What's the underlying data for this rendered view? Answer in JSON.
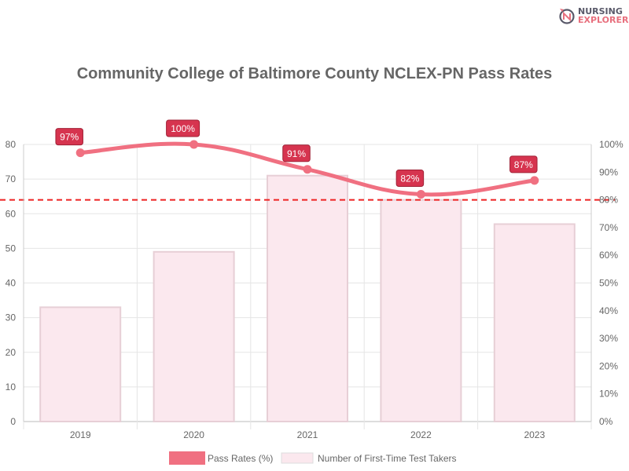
{
  "logo": {
    "line1": "NURSING",
    "line2": "EXPLORER"
  },
  "chart_data": {
    "type": "bar+line",
    "title": "Community College of Baltimore County NCLEX-PN Pass Rates",
    "categories": [
      "2019",
      "2020",
      "2021",
      "2022",
      "2023"
    ],
    "series": [
      {
        "name": "Pass Rates (%)",
        "type": "line",
        "axis": "right",
        "values": [
          97,
          100,
          91,
          82,
          87
        ],
        "labels": [
          "97%",
          "100%",
          "91%",
          "82%",
          "87%"
        ],
        "color": "#f07081"
      },
      {
        "name": "Number of First-Time Test Takers",
        "type": "bar",
        "axis": "left",
        "values": [
          33,
          49,
          71,
          64,
          57
        ],
        "color": "#fbe8ee",
        "border": "#e7cfd6"
      }
    ],
    "left_axis": {
      "ylim": [
        0,
        80
      ],
      "ticks": [
        "0",
        "10",
        "20",
        "30",
        "40",
        "50",
        "60",
        "70",
        "80"
      ]
    },
    "right_axis": {
      "ylim": [
        0,
        100
      ],
      "ticks": [
        "0%",
        "10%",
        "20%",
        "30%",
        "40%",
        "50%",
        "60%",
        "70%",
        "80%",
        "90%",
        "100%"
      ]
    },
    "reference_line": {
      "value": 80,
      "axis": "right",
      "style": "dashed",
      "color": "#ee2222"
    },
    "label_color": "#d6344f",
    "grid": true,
    "legend": "bottom"
  }
}
